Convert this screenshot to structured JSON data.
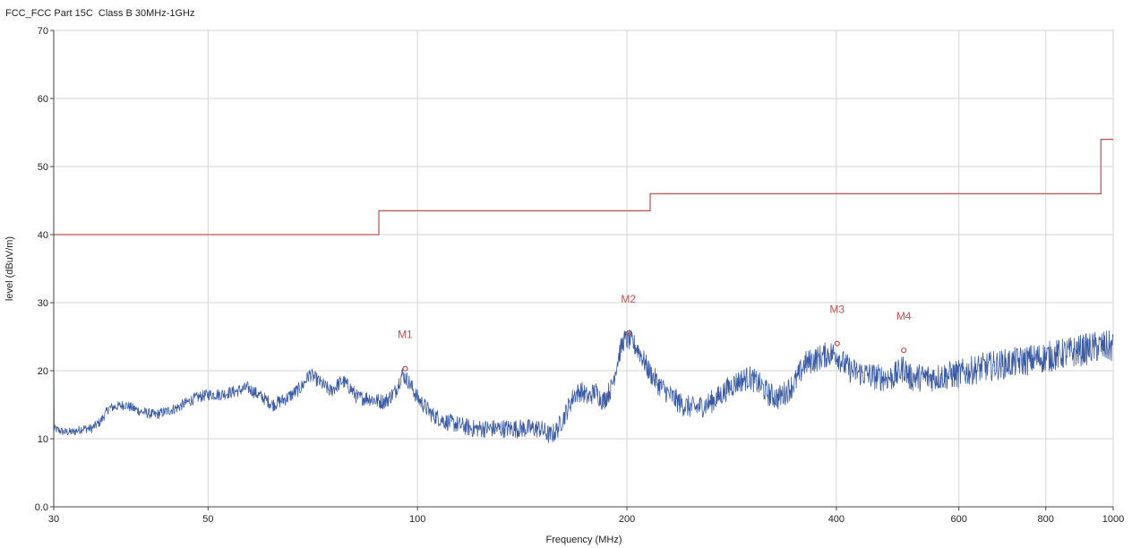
{
  "chart_data": {
    "type": "line",
    "title": "FCC_FCC Part 15C  Class B 30MHz-1GHz",
    "xlabel": "Frequency (MHz)",
    "ylabel": "level (dBuV/m)",
    "x_scale": "log",
    "xlim": [
      30,
      1000
    ],
    "ylim": [
      0,
      70
    ],
    "grid": true,
    "x_ticks": [
      {
        "value": 30,
        "label": "30"
      },
      {
        "value": 50,
        "label": "50"
      },
      {
        "value": 100,
        "label": "100"
      },
      {
        "value": 200,
        "label": "200"
      },
      {
        "value": 400,
        "label": "400"
      },
      {
        "value": 600,
        "label": "600"
      },
      {
        "value": 800,
        "label": "800"
      },
      {
        "value": 1000,
        "label": "1000"
      }
    ],
    "y_ticks": [
      {
        "value": 0,
        "label": "0.0"
      },
      {
        "value": 10,
        "label": "10"
      },
      {
        "value": 20,
        "label": "20"
      },
      {
        "value": 30,
        "label": "30"
      },
      {
        "value": 40,
        "label": "40"
      },
      {
        "value": 50,
        "label": "50"
      },
      {
        "value": 60,
        "label": "60"
      },
      {
        "value": 70,
        "label": "70"
      }
    ],
    "series": [
      {
        "color": "#c0504d",
        "step": true,
        "x": [
          30,
          88,
          88,
          216,
          216,
          960,
          960,
          1000
        ],
        "y": [
          40,
          40,
          43.5,
          43.5,
          46,
          46,
          54,
          54
        ]
      },
      {
        "color": "#3b5ba5",
        "noisy": true,
        "x": [
          30,
          31,
          32,
          33,
          34,
          35,
          36,
          38,
          40,
          42,
          45,
          48,
          50,
          52,
          55,
          57,
          60,
          62,
          65,
          68,
          70,
          72,
          75,
          78,
          80,
          82,
          85,
          88,
          90,
          93,
          95,
          97,
          100,
          105,
          110,
          115,
          120,
          130,
          140,
          150,
          155,
          158,
          162,
          168,
          172,
          176,
          180,
          185,
          190,
          195,
          198,
          202,
          208,
          215,
          222,
          230,
          240,
          250,
          260,
          270,
          280,
          290,
          300,
          310,
          320,
          330,
          340,
          350,
          360,
          370,
          380,
          390,
          400,
          410,
          420,
          440,
          460,
          480,
          490,
          500,
          510,
          520,
          550,
          600,
          650,
          700,
          750,
          800,
          850,
          900,
          950,
          1000
        ],
        "y": [
          11.5,
          11,
          11,
          11.5,
          11.5,
          12.5,
          14.5,
          15,
          14,
          13.5,
          14.5,
          16,
          16.5,
          16.5,
          17,
          17.5,
          16,
          15,
          16,
          17.5,
          19.5,
          18.5,
          17,
          18.5,
          17.5,
          16,
          16,
          15.5,
          15.5,
          17,
          19.5,
          18.5,
          16,
          13.5,
          12.5,
          12,
          11.5,
          11.5,
          11.5,
          11.5,
          10.5,
          11,
          13,
          16.5,
          17,
          16,
          17,
          15.5,
          17.5,
          22.5,
          24.5,
          24.5,
          23,
          20,
          18,
          16.5,
          15,
          14.5,
          15,
          16,
          17.5,
          18.5,
          19,
          18,
          16.5,
          16,
          17,
          18.5,
          21,
          21.5,
          22,
          22.5,
          22.5,
          21,
          20,
          19.5,
          19,
          19,
          19.5,
          20.5,
          19,
          19,
          19,
          19.5,
          20.5,
          21,
          21.5,
          22,
          22.5,
          23,
          23.5,
          23.5
        ]
      }
    ],
    "markers": [
      {
        "label": "M1",
        "x": 96,
        "y": 20.3
      },
      {
        "label": "M2",
        "x": 201,
        "y": 25.5
      },
      {
        "label": "M3",
        "x": 401,
        "y": 24
      },
      {
        "label": "M4",
        "x": 500,
        "y": 23
      }
    ]
  }
}
